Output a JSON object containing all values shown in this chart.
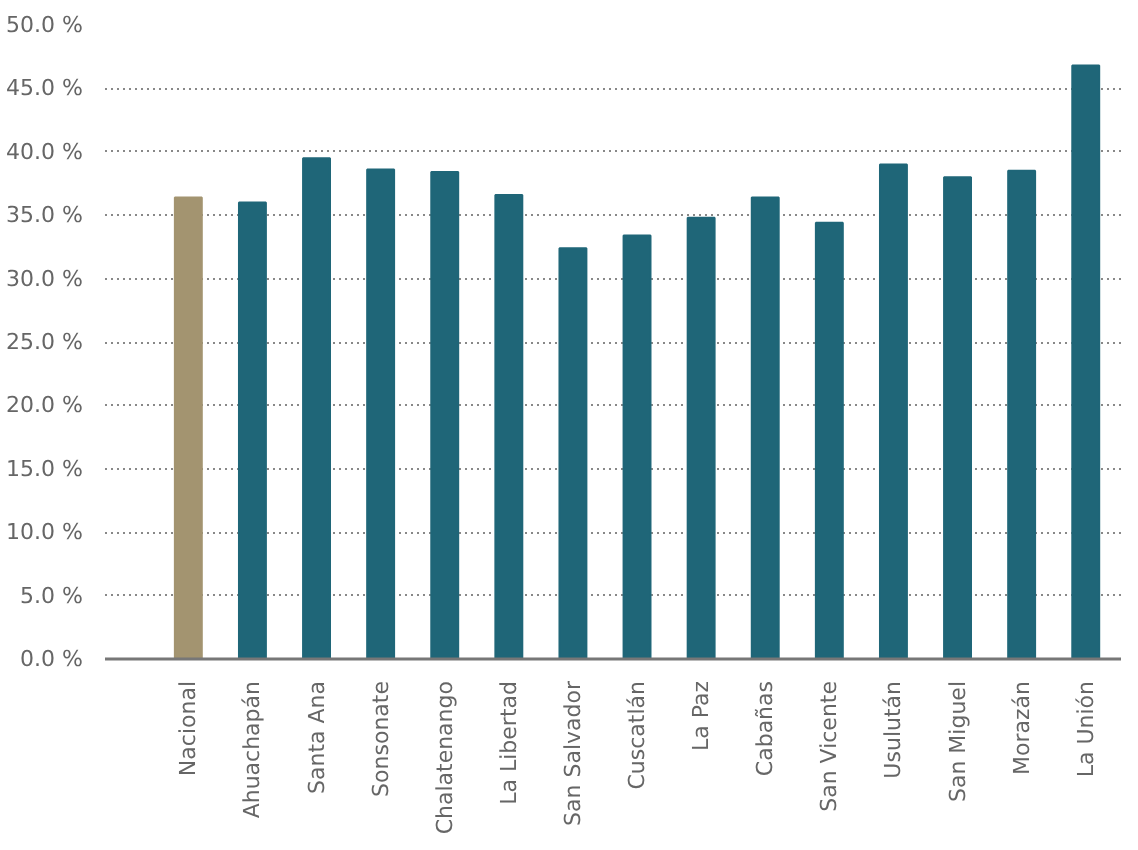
{
  "chart_data": {
    "type": "bar",
    "categories": [
      "Nacional",
      "Ahuachapán",
      "Santa Ana",
      "Sonsonate",
      "Chalatenango",
      "La Libertad",
      "San Salvador",
      "Cuscatlán",
      "La Paz",
      "Cabañas",
      "San Vicente",
      "Usulután",
      "San Miguel",
      "Morazán",
      "La Unión"
    ],
    "values": [
      36.4,
      36.0,
      39.5,
      38.6,
      38.4,
      36.6,
      32.4,
      33.4,
      34.8,
      36.4,
      34.4,
      39.0,
      38.0,
      38.5,
      46.8
    ],
    "colors": [
      "#a39470",
      "#1f6678",
      "#1f6678",
      "#1f6678",
      "#1f6678",
      "#1f6678",
      "#1f6678",
      "#1f6678",
      "#1f6678",
      "#1f6678",
      "#1f6678",
      "#1f6678",
      "#1f6678",
      "#1f6678",
      "#1f6678"
    ],
    "ylim": [
      0,
      50
    ],
    "yticks": [
      {
        "value": 0,
        "label": "0.0 %"
      },
      {
        "value": 5,
        "label": "5.0 %"
      },
      {
        "value": 10,
        "label": "10.0 %"
      },
      {
        "value": 15,
        "label": "15.0 %"
      },
      {
        "value": 20,
        "label": "20.0 %"
      },
      {
        "value": 25,
        "label": "25.0 %"
      },
      {
        "value": 30,
        "label": "30.0 %"
      },
      {
        "value": 35,
        "label": "35.0 %"
      },
      {
        "value": 40,
        "label": "40.0 %"
      },
      {
        "value": 45,
        "label": "45.0 %"
      },
      {
        "value": 50,
        "label": "50.0 %"
      }
    ],
    "grid": "y"
  }
}
